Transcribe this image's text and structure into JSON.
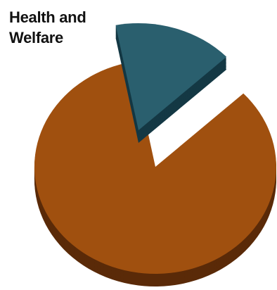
{
  "chart_data": {
    "type": "pie",
    "style": "3d-exploded",
    "slices": [
      {
        "label": "Health and Welfare",
        "value": 0.16,
        "color": "#2a5f6e",
        "side_color": "#143844",
        "exploded": true
      },
      {
        "label": "",
        "value": 0.84,
        "color": "#a0500f",
        "side_color": "#5a2a08",
        "exploded": false
      }
    ],
    "legend": "none"
  }
}
